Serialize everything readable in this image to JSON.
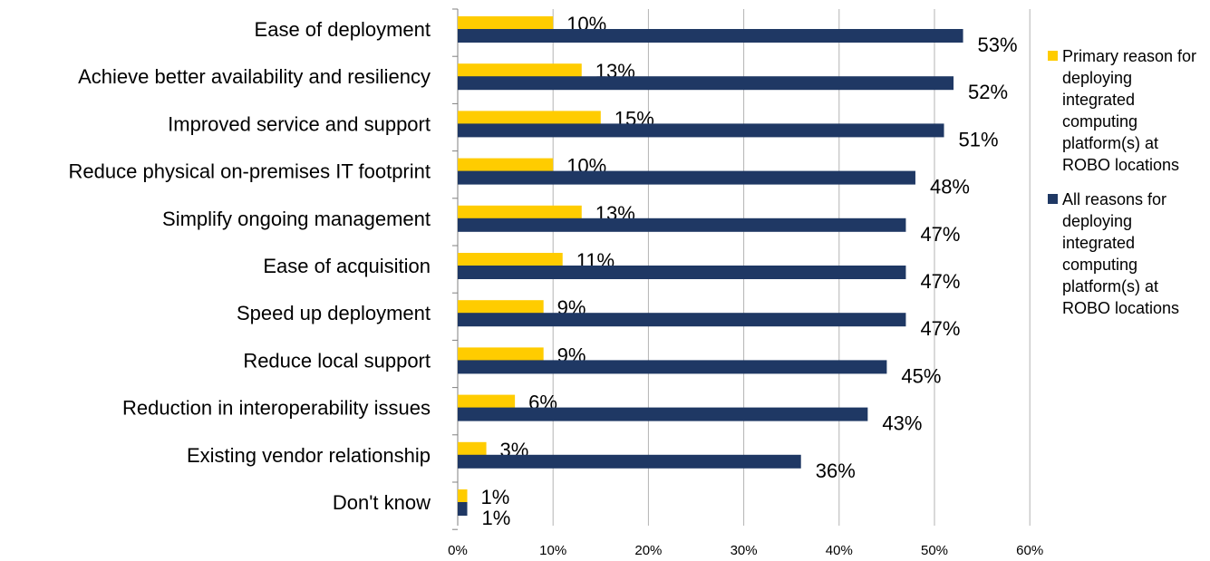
{
  "chart_data": {
    "type": "bar",
    "orientation": "horizontal",
    "categories": [
      "Ease of deployment",
      "Achieve better availability and resiliency",
      "Improved service and support",
      "Reduce physical on-premises IT footprint",
      "Simplify ongoing management",
      "Ease of acquisition",
      "Speed up deployment",
      "Reduce local support",
      "Reduction in interoperability issues",
      "Existing vendor relationship",
      "Don't know"
    ],
    "series": [
      {
        "name": "Primary reason for deploying integrated computing platform(s) at ROBO locations",
        "color": "#FFCC00",
        "values": [
          10,
          13,
          15,
          10,
          13,
          11,
          9,
          9,
          6,
          3,
          1
        ],
        "labels": [
          "10%",
          "13%",
          "15%",
          "10%",
          "13%",
          "11%",
          "9%",
          "9%",
          "6%",
          "3%",
          "1%"
        ]
      },
      {
        "name": "All reasons for deploying integrated computing platform(s) at ROBO locations",
        "color": "#1F3864",
        "values": [
          53,
          52,
          51,
          48,
          47,
          47,
          47,
          45,
          43,
          36,
          1
        ],
        "labels": [
          "53%",
          "52%",
          "51%",
          "48%",
          "47%",
          "47%",
          "47%",
          "45%",
          "43%",
          "36%",
          "1%"
        ]
      }
    ],
    "x_ticks": [
      "0%",
      "10%",
      "20%",
      "30%",
      "40%",
      "50%",
      "60%"
    ],
    "xlim": [
      0,
      60
    ],
    "grid": true,
    "legend_position": "right",
    "title": "",
    "xlabel": "",
    "ylabel": ""
  }
}
